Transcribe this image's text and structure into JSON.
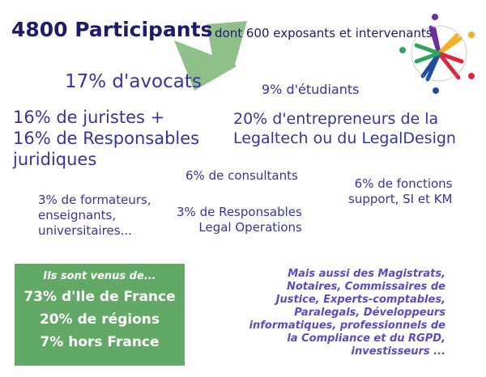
{
  "header": {
    "title": "4800 Participants",
    "subtitle": "dont 600 exposants et intervenants"
  },
  "stats": {
    "avocats": "17% d'avocats",
    "etudiants": "9% d'étudiants",
    "juristes": [
      "16% de juristes +",
      "16% de Responsables",
      "juridiques"
    ],
    "entrepreneurs": [
      "20% d'entrepreneurs de la",
      "Legaltech ou du LegalDesign"
    ],
    "consultants": "6% de consultants",
    "fonctions": [
      "6% de fonctions",
      "support, SI et KM"
    ],
    "formateurs": [
      "3% de formateurs,",
      "enseignants,",
      "universitaires..."
    ],
    "legal_ops": [
      "3% de Responsables",
      "Legal Operations"
    ]
  },
  "origin": {
    "heading": "Ils sont venus de...",
    "lines": [
      "73% d'Ile de France",
      "20%  de régions",
      "7% hors France"
    ],
    "color": "#62a866"
  },
  "others": [
    "Mais aussi des Magistrats,",
    "Notaires,  Commissaires de",
    "Justice, Experts-comptables,",
    "Paralegals, Développeurs",
    "informatiques, professionnels de",
    "la Compliance et du RGPD,",
    "investisseurs ..."
  ],
  "icons": {
    "arrow": "green-arrow-down-left",
    "logo": "people-circle-logo"
  },
  "colors": {
    "title": "#1c1c6e",
    "stats": "#3434a4",
    "others": "#5a4cc0",
    "arrow": "#8fc08a"
  }
}
